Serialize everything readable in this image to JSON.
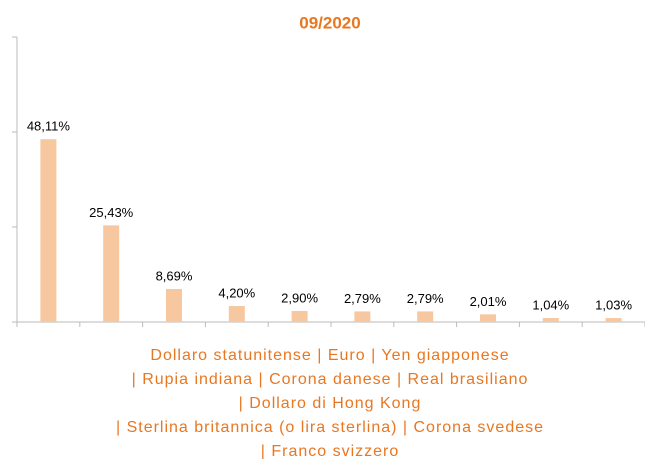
{
  "chart_data": {
    "type": "bar",
    "title": "09/2020",
    "values": [
      48.11,
      25.43,
      8.69,
      4.2,
      2.9,
      2.79,
      2.79,
      2.01,
      1.04,
      1.03
    ],
    "value_labels": [
      "48,11%",
      "25,43%",
      "8,69%",
      "4,20%",
      "2,90%",
      "2,79%",
      "2,79%",
      "2,01%",
      "1,04%",
      "1,03%"
    ],
    "color": "#f7c8a0",
    "ylim": [
      0,
      75
    ],
    "yticks": [
      0,
      25,
      50,
      75
    ],
    "grid": false,
    "caption": [
      "Dollaro statunitense | Euro | Yen giapponese",
      "| Rupia indiana | Corona danese | Real brasiliano",
      "| Dollaro di Hong Kong",
      "| Sterlina britannica (o lira sterlina) | Corona svedese",
      "| Franco svizzero"
    ]
  }
}
